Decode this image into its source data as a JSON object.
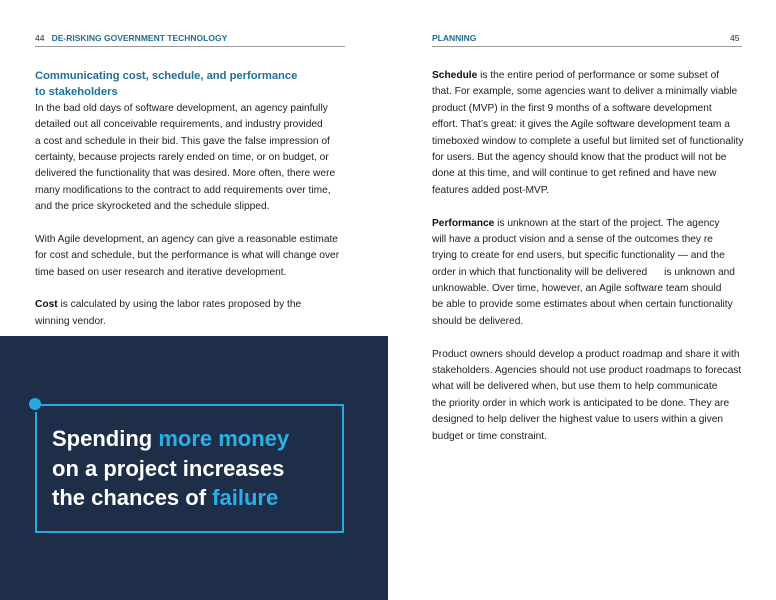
{
  "left_page": {
    "page_number": "44",
    "running_head": "DE-RISKING GOVERNMENT TECHNOLOGY",
    "heading": [
      "Communicating cost, schedule, and performance",
      "to stakeholders"
    ],
    "para1": [
      "In the bad old days of software development, an agency painfully",
      "detailed out all conceivable requirements, and industry provided",
      "a cost and schedule in their bid. This gave the false impression of",
      "certainty, because projects rarely ended on time, or on budget, or",
      "delivered the functionality that was desired. More often, there were",
      "many modifications to the contract to add requirements over time,",
      "and the price skyrocketed and the schedule slipped."
    ],
    "para2": [
      "With Agile development, an agency can give a reasonable estimate",
      "for cost and schedule, but the performance is what will change over",
      "time based on user research and iterative development."
    ],
    "para3_term": "Cost",
    "para3": [
      " is calculated by using the labor rates proposed by the",
      "winning vendor."
    ],
    "quote": {
      "l1a": "Spending ",
      "l1b": "more money",
      "l2": "on a project increases",
      "l3a": "the chances of ",
      "l3b": "failure"
    }
  },
  "right_page": {
    "page_number": "45",
    "running_head": "PLANNING",
    "p1_term": "Schedule",
    "p1": [
      " is the entire period of performance or some subset of",
      "that. For example, some agencies want to deliver a minimally viable",
      "product (MVP) in the first 9 months of a software development",
      "effort. That’s great: it gives the Agile software development team a",
      "timeboxed window to complete a useful but limited set of functionality",
      "for users. But the agency should know that the product will not be",
      "done at this time, and will continue to get refined and have new",
      "features added post-MVP."
    ],
    "p2_term": "Performance",
    "p2": [
      " is unknown at the start of the project. The agency",
      "will have a product vision and a sense of the outcomes they re",
      "trying to create for end users, but specific functionality — and the",
      "order in which that functionality will be delivered      is unknown and",
      "unknowable. Over time, however, an Agile software team should",
      "be able to provide some estimates about when certain functionality",
      "should be delivered."
    ],
    "p3": [
      "Product owners should develop a product roadmap and share it with",
      "stakeholders. Agencies should not use product roadmaps to forecast",
      "what will be delivered when, but use them to help communicate",
      "the priority order in which work is anticipated to be done. They are",
      "designed to help deliver the highest value to users within a given",
      "budget or time constraint."
    ]
  },
  "colors": {
    "accent": "#29a8e0",
    "heading": "#1f6f96",
    "panel": "#1e2e48"
  }
}
